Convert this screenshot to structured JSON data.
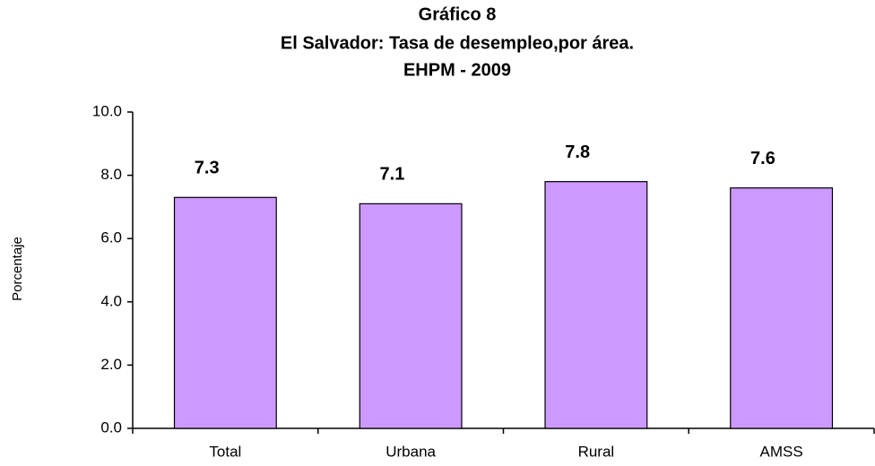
{
  "chart_data": {
    "type": "bar",
    "title": [
      "Gráfico  8",
      "El Salvador: Tasa de desempleo,por área.",
      "EHPM - 2009"
    ],
    "ylabel": "Porcentaje",
    "categories": [
      "Total",
      "Urbana",
      "Rural",
      "AMSS"
    ],
    "values": [
      7.3,
      7.1,
      7.8,
      7.6
    ],
    "color": "#cc99ff",
    "ylim": [
      0,
      10
    ],
    "yticks": [
      {
        "value": 0,
        "label": "0.0"
      },
      {
        "value": 2,
        "label": "2.0"
      },
      {
        "value": 4,
        "label": "4.0"
      },
      {
        "value": 6,
        "label": "6.0"
      },
      {
        "value": 8,
        "label": "8.0"
      },
      {
        "value": 10,
        "label": "10.0"
      }
    ],
    "grid": false
  }
}
